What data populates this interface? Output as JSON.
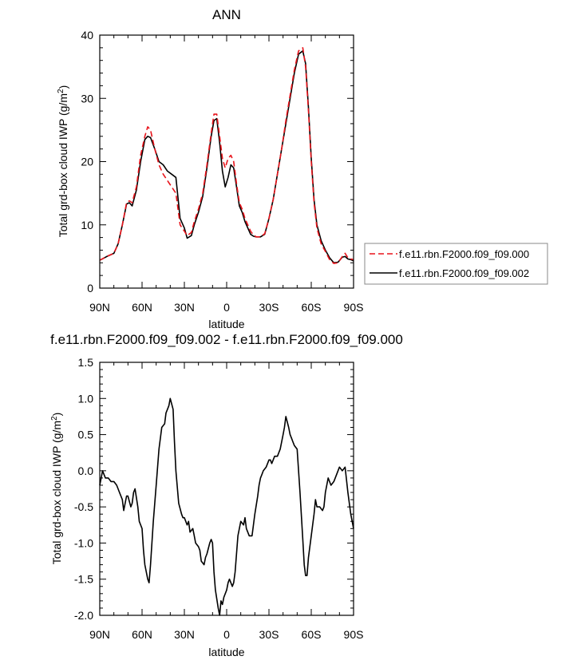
{
  "chart_data": [
    {
      "type": "line",
      "title": "ANN",
      "xlabel": "latitude",
      "ylabel": "Total grd-box cloud IWP (g/m",
      "ylabel_superscript": "2",
      "ylabel_suffix": ")",
      "xlim": [
        90,
        -90
      ],
      "ylim": [
        0,
        40
      ],
      "x_ticks": [
        90,
        60,
        30,
        0,
        -30,
        -60,
        -90
      ],
      "x_tick_labels": [
        "90N",
        "60N",
        "30N",
        "0",
        "30S",
        "60S",
        "90S"
      ],
      "y_ticks": [
        0,
        10,
        20,
        30,
        40
      ],
      "y_tick_labels": [
        "0",
        "10",
        "20",
        "30",
        "40"
      ],
      "grid": false,
      "legend_position": "right",
      "series": [
        {
          "name": "f.e11.rbn.F2000.f09_f09.000",
          "color": "#e8141b",
          "style": "dashed",
          "x": [
            90,
            85,
            80,
            77,
            74,
            71,
            69,
            67,
            64,
            61,
            58,
            56,
            54,
            51,
            48,
            45,
            42,
            39,
            36,
            33,
            30,
            28,
            25,
            23,
            20,
            17,
            14,
            11,
            9,
            7,
            5,
            3,
            1,
            -1,
            -3,
            -5,
            -7,
            -9,
            -11,
            -13,
            -15,
            -17,
            -19,
            -21,
            -24,
            -27,
            -30,
            -33,
            -36,
            -39,
            -42,
            -45,
            -48,
            -51,
            -54,
            -56,
            -58,
            -60,
            -62,
            -64,
            -67,
            -70,
            -73,
            -76,
            -79,
            -82,
            -84,
            -86,
            -88,
            -90
          ],
          "y": [
            4.4,
            5.0,
            5.5,
            7.0,
            10.0,
            13.5,
            13.8,
            13.5,
            16.0,
            21.0,
            24.0,
            25.5,
            25.0,
            22.0,
            19.5,
            18.0,
            17.0,
            16.0,
            15.0,
            10.0,
            9.0,
            8.3,
            8.8,
            10.5,
            12.5,
            15.0,
            19.5,
            24.5,
            27.5,
            27.5,
            24.0,
            20.5,
            19.0,
            20.5,
            21.0,
            20.0,
            16.5,
            13.5,
            12.5,
            11.0,
            10.0,
            9.0,
            8.4,
            8.1,
            8.1,
            8.6,
            11.0,
            14.0,
            18.0,
            22.0,
            26.5,
            30.5,
            34.5,
            37.5,
            38.0,
            35.0,
            28.0,
            20.0,
            13.5,
            9.5,
            7.0,
            5.8,
            4.5,
            3.9,
            4.0,
            5.0,
            5.5,
            4.8,
            4.6,
            4.5
          ]
        },
        {
          "name": "f.e11.rbn.F2000.f09_f09.002",
          "color": "#000000",
          "style": "solid",
          "x": [
            90,
            85,
            80,
            77,
            74,
            71,
            69,
            67,
            64,
            61,
            58,
            56,
            54,
            51,
            48,
            45,
            42,
            39,
            36,
            33,
            30,
            28,
            25,
            23,
            20,
            17,
            14,
            11,
            9,
            7,
            5,
            3,
            1,
            -1,
            -3,
            -5,
            -7,
            -9,
            -11,
            -13,
            -15,
            -17,
            -19,
            -21,
            -24,
            -27,
            -30,
            -33,
            -36,
            -39,
            -42,
            -45,
            -48,
            -51,
            -54,
            -56,
            -58,
            -60,
            -62,
            -64,
            -67,
            -70,
            -73,
            -76,
            -79,
            -82,
            -84,
            -86,
            -88,
            -90
          ],
          "y": [
            4.4,
            5.0,
            5.5,
            7.0,
            10.0,
            13.3,
            13.5,
            13.0,
            15.5,
            20.0,
            23.5,
            24.0,
            23.8,
            22.0,
            20.0,
            19.5,
            18.5,
            18.0,
            17.5,
            11.0,
            9.5,
            7.9,
            8.3,
            10.0,
            12.0,
            14.5,
            19.0,
            24.0,
            26.5,
            26.8,
            23.0,
            18.5,
            16.0,
            17.5,
            19.5,
            19.0,
            16.0,
            13.0,
            12.0,
            10.5,
            9.5,
            8.5,
            8.2,
            8.1,
            8.1,
            8.5,
            11.0,
            14.0,
            18.0,
            22.0,
            26.0,
            30.0,
            34.0,
            37.0,
            37.5,
            35.5,
            28.5,
            20.5,
            14.0,
            10.0,
            7.5,
            6.0,
            4.8,
            4.0,
            4.1,
            4.9,
            5.0,
            4.6,
            4.5,
            4.3
          ]
        }
      ]
    },
    {
      "type": "line",
      "title": "f.e11.rbn.F2000.f09_f09.002 - f.e11.rbn.F2000.f09_f09.000",
      "xlabel": "latitude",
      "ylabel": "Total grd-box cloud IWP (g/m",
      "ylabel_superscript": "2",
      "ylabel_suffix": ")",
      "xlim": [
        90,
        -90
      ],
      "ylim": [
        -2.0,
        1.5
      ],
      "x_ticks": [
        90,
        60,
        30,
        0,
        -30,
        -60,
        -90
      ],
      "x_tick_labels": [
        "90N",
        "60N",
        "30N",
        "0",
        "30S",
        "60S",
        "90S"
      ],
      "y_ticks": [
        -2.0,
        -1.5,
        -1.0,
        -0.5,
        0.0,
        0.5,
        1.0,
        1.5
      ],
      "y_tick_labels": [
        "-2.0",
        "-1.5",
        "-1.0",
        "-0.5",
        "0.0",
        "0.5",
        "1.0",
        "1.5"
      ],
      "grid": false,
      "series": [
        {
          "color": "#000000",
          "style": "solid",
          "x": [
            90,
            88,
            86,
            84,
            82,
            80,
            78,
            76,
            74,
            73,
            72,
            71,
            70,
            68,
            67,
            66,
            65,
            63,
            62,
            60,
            59,
            58,
            56,
            55,
            54,
            52,
            50,
            48,
            46,
            44,
            43,
            42,
            41,
            40,
            38,
            37,
            36,
            34,
            32,
            31,
            30,
            28,
            27,
            26,
            24,
            23,
            22,
            20,
            19,
            18,
            16,
            15,
            14,
            12,
            11,
            10,
            9,
            8,
            6,
            5,
            4,
            3,
            2,
            0,
            -1,
            -2,
            -4,
            -5,
            -6,
            -8,
            -10,
            -12,
            -13,
            -14,
            -16,
            -18,
            -20,
            -22,
            -23,
            -24,
            -25,
            -26,
            -28,
            -30,
            -31,
            -32,
            -33,
            -34,
            -36,
            -38,
            -40,
            -41,
            -42,
            -44,
            -45,
            -46,
            -47,
            -48,
            -50,
            -52,
            -54,
            -55,
            -56,
            -57,
            -58,
            -60,
            -62,
            -63,
            -64,
            -66,
            -68,
            -69,
            -70,
            -72,
            -74,
            -76,
            -78,
            -80,
            -82,
            -84,
            -86,
            -88,
            -90
          ],
          "y": [
            -0.2,
            0.0,
            -0.1,
            -0.1,
            -0.15,
            -0.15,
            -0.2,
            -0.3,
            -0.4,
            -0.55,
            -0.45,
            -0.35,
            -0.35,
            -0.5,
            -0.45,
            -0.3,
            -0.25,
            -0.5,
            -0.7,
            -0.8,
            -1.1,
            -1.3,
            -1.5,
            -1.55,
            -1.3,
            -0.7,
            -0.2,
            0.3,
            0.6,
            0.65,
            0.8,
            0.85,
            0.9,
            1.0,
            0.85,
            0.4,
            0.0,
            -0.45,
            -0.6,
            -0.65,
            -0.65,
            -0.75,
            -0.7,
            -0.85,
            -0.8,
            -0.9,
            -1.0,
            -1.05,
            -1.1,
            -1.25,
            -1.3,
            -1.2,
            -1.15,
            -1.0,
            -0.95,
            -1.0,
            -1.4,
            -1.65,
            -1.9,
            -2.0,
            -1.8,
            -1.85,
            -1.75,
            -1.65,
            -1.55,
            -1.5,
            -1.6,
            -1.55,
            -1.4,
            -0.9,
            -0.7,
            -0.75,
            -0.65,
            -0.8,
            -0.9,
            -0.9,
            -0.6,
            -0.35,
            -0.2,
            -0.1,
            -0.05,
            0.0,
            0.05,
            0.15,
            0.15,
            0.1,
            0.15,
            0.2,
            0.2,
            0.3,
            0.5,
            0.6,
            0.75,
            0.6,
            0.5,
            0.45,
            0.4,
            0.35,
            0.3,
            -0.3,
            -0.95,
            -1.3,
            -1.45,
            -1.45,
            -1.2,
            -0.9,
            -0.6,
            -0.4,
            -0.5,
            -0.5,
            -0.55,
            -0.5,
            -0.3,
            -0.1,
            -0.2,
            -0.15,
            -0.05,
            0.05,
            0.0,
            0.05,
            -0.3,
            -0.6,
            -0.8
          ]
        }
      ]
    }
  ]
}
